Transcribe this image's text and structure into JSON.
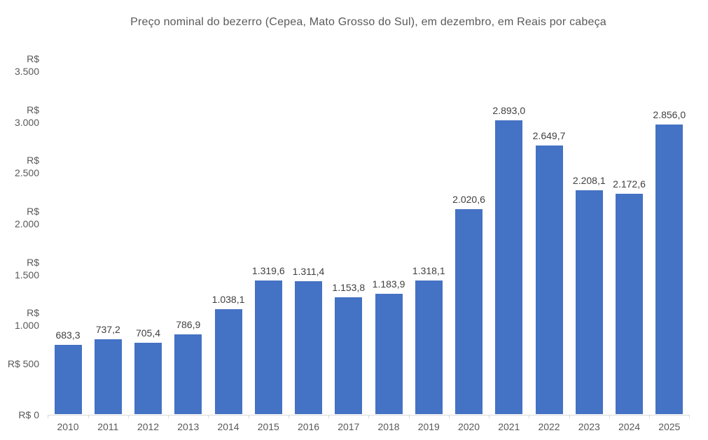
{
  "chart_data": {
    "type": "bar",
    "title": "Preço nominal do bezerro (Cepea, Mato Grosso do Sul), em dezembro, em Reais por cabeça",
    "categories": [
      "2010",
      "2011",
      "2012",
      "2013",
      "2014",
      "2015",
      "2016",
      "2017",
      "2018",
      "2019",
      "2020",
      "2021",
      "2022",
      "2023",
      "2024",
      "2025"
    ],
    "values": [
      683.3,
      737.2,
      705.4,
      786.9,
      1038.1,
      1319.6,
      1311.4,
      1153.8,
      1183.9,
      1318.1,
      2020.6,
      2893.0,
      2649.7,
      2208.1,
      2172.6,
      2856.0
    ],
    "value_labels": [
      "683,3",
      "737,2",
      "705,4",
      "786,9",
      "1.038,1",
      "1.319,6",
      "1.311,4",
      "1.153,8",
      "1.183,9",
      "1.318,1",
      "2.020,6",
      "2.893,0",
      "2.649,7",
      "2.208,1",
      "2.172,6",
      "2.856,0"
    ],
    "xlabel": "",
    "ylabel": "",
    "ylim": [
      0,
      3500
    ],
    "y_ticks": [
      {
        "value": 0,
        "label": "R$ 0"
      },
      {
        "value": 500,
        "label": "R$ 500"
      },
      {
        "value": 1000,
        "label": "R$ 1.000"
      },
      {
        "value": 1500,
        "label": "R$ 1.500"
      },
      {
        "value": 2000,
        "label": "R$ 2.000"
      },
      {
        "value": 2500,
        "label": "R$ 2.500"
      },
      {
        "value": 3000,
        "label": "R$ 3.000"
      },
      {
        "value": 3500,
        "label": "R$ 3.500"
      }
    ],
    "grid": false,
    "legend": false,
    "colors": {
      "bar": "#4472C4",
      "value_label": "#404040",
      "axis_label": "#595959",
      "title": "#595959",
      "axis_line": "#D9D9D9",
      "background": "#FFFFFF"
    }
  }
}
